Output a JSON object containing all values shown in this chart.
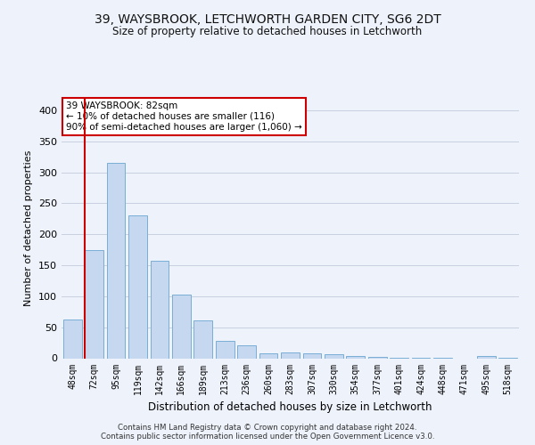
{
  "title1": "39, WAYSBROOK, LETCHWORTH GARDEN CITY, SG6 2DT",
  "title2": "Size of property relative to detached houses in Letchworth",
  "xlabel": "Distribution of detached houses by size in Letchworth",
  "ylabel": "Number of detached properties",
  "categories": [
    "48sqm",
    "72sqm",
    "95sqm",
    "119sqm",
    "142sqm",
    "166sqm",
    "189sqm",
    "213sqm",
    "236sqm",
    "260sqm",
    "283sqm",
    "307sqm",
    "330sqm",
    "354sqm",
    "377sqm",
    "401sqm",
    "424sqm",
    "448sqm",
    "471sqm",
    "495sqm",
    "518sqm"
  ],
  "values": [
    63,
    175,
    315,
    230,
    157,
    102,
    61,
    28,
    21,
    8,
    9,
    8,
    6,
    4,
    2,
    1,
    1,
    1,
    0,
    3,
    1
  ],
  "bar_color": "#c5d8f0",
  "bar_edge_color": "#7aaed6",
  "vline_color": "#cc0000",
  "annotation_text": "39 WAYSBROOK: 82sqm\n← 10% of detached houses are smaller (116)\n90% of semi-detached houses are larger (1,060) →",
  "annotation_box_color": "#ffffff",
  "annotation_box_edge": "#cc0000",
  "ylim": [
    0,
    420
  ],
  "yticks": [
    0,
    50,
    100,
    150,
    200,
    250,
    300,
    350,
    400
  ],
  "grid_color": "#c8d0e0",
  "footer1": "Contains HM Land Registry data © Crown copyright and database right 2024.",
  "footer2": "Contains public sector information licensed under the Open Government Licence v3.0.",
  "bg_color": "#eef2fb",
  "plot_bg_color": "#eef2fb"
}
